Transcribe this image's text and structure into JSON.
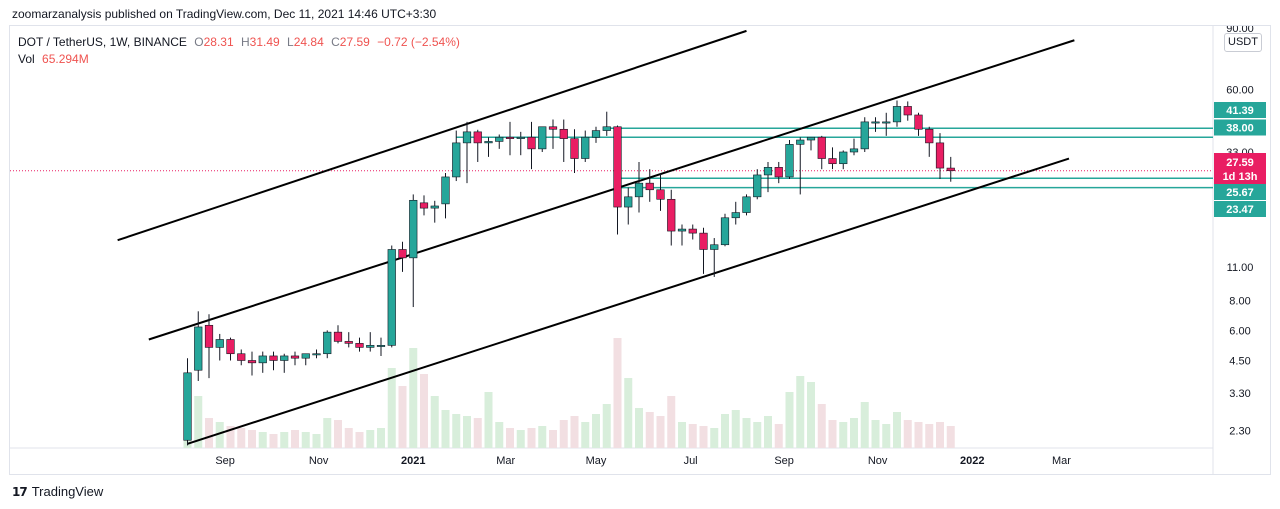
{
  "header": {
    "publisher": "zoomarzanalysis published on TradingView.com, Dec 11, 2021 14:46 UTC+3:30"
  },
  "legend": {
    "symbol": "DOT / TetherUS, 1W, BINANCE",
    "o_label": "O",
    "o_val": "28.31",
    "h_label": "H",
    "h_val": "31.49",
    "l_label": "L",
    "l_val": "24.84",
    "c_label": "C",
    "c_val": "27.59",
    "change": "−0.72 (−2.54%)",
    "vol_label": "Vol",
    "vol_val": "65.294M"
  },
  "currency_label": "USDT",
  "footer": {
    "brand": "TradingView",
    "logo": "17"
  },
  "colors": {
    "up": "#26a69a",
    "down": "#e91e63",
    "vol_up": "#d8eedb",
    "vol_down": "#f2dfe2",
    "level": "#26a69a",
    "price": "#e91e63"
  },
  "chart_data": {
    "type": "candlestick",
    "symbol": "DOT / TetherUS",
    "interval": "1W",
    "exchange": "BINANCE",
    "y_scale": "log",
    "ylim": [
      1.95,
      110
    ],
    "x_ticks": [
      "Sep",
      "Nov",
      "2021",
      "Mar",
      "May",
      "Jul",
      "Sep",
      "Nov",
      "2022",
      "Mar"
    ],
    "x_tick_index": [
      3.5,
      12.2,
      21.0,
      29.6,
      38.0,
      46.8,
      55.5,
      64.2,
      73.0,
      81.3
    ],
    "y_ticks": [
      2.3,
      3.3,
      4.5,
      6.0,
      8.0,
      11.0,
      33.0,
      60.0
    ],
    "y_tick_labels": [
      "2.30",
      "3.30",
      "4.50",
      "6.00",
      "8.00",
      "11.00",
      "33.00",
      "60.00"
    ],
    "candles": [
      {
        "o": 2.1,
        "h": 4.6,
        "l": 2.0,
        "c": 4.0,
        "v": 34
      },
      {
        "o": 4.1,
        "h": 7.2,
        "l": 3.7,
        "c": 6.2,
        "v": 52
      },
      {
        "o": 6.3,
        "h": 7.0,
        "l": 3.8,
        "c": 5.1,
        "v": 30
      },
      {
        "o": 5.1,
        "h": 5.8,
        "l": 4.5,
        "c": 5.5,
        "v": 26
      },
      {
        "o": 5.5,
        "h": 5.6,
        "l": 4.5,
        "c": 4.8,
        "v": 22
      },
      {
        "o": 4.8,
        "h": 5.0,
        "l": 4.3,
        "c": 4.5,
        "v": 20
      },
      {
        "o": 4.5,
        "h": 4.9,
        "l": 3.9,
        "c": 4.4,
        "v": 18
      },
      {
        "o": 4.4,
        "h": 4.9,
        "l": 4.0,
        "c": 4.7,
        "v": 16
      },
      {
        "o": 4.7,
        "h": 4.9,
        "l": 4.1,
        "c": 4.5,
        "v": 14
      },
      {
        "o": 4.5,
        "h": 4.8,
        "l": 4.0,
        "c": 4.7,
        "v": 16
      },
      {
        "o": 4.7,
        "h": 4.9,
        "l": 4.3,
        "c": 4.6,
        "v": 18
      },
      {
        "o": 4.6,
        "h": 4.8,
        "l": 4.3,
        "c": 4.8,
        "v": 16
      },
      {
        "o": 4.8,
        "h": 5.0,
        "l": 4.6,
        "c": 4.8,
        "v": 14
      },
      {
        "o": 4.8,
        "h": 6.0,
        "l": 4.6,
        "c": 5.9,
        "v": 30
      },
      {
        "o": 5.9,
        "h": 6.3,
        "l": 5.3,
        "c": 5.4,
        "v": 28
      },
      {
        "o": 5.4,
        "h": 5.9,
        "l": 5.1,
        "c": 5.3,
        "v": 20
      },
      {
        "o": 5.3,
        "h": 5.6,
        "l": 4.9,
        "c": 5.1,
        "v": 16
      },
      {
        "o": 5.1,
        "h": 5.9,
        "l": 4.9,
        "c": 5.2,
        "v": 18
      },
      {
        "o": 5.2,
        "h": 5.6,
        "l": 4.7,
        "c": 5.2,
        "v": 20
      },
      {
        "o": 5.2,
        "h": 13.5,
        "l": 5.1,
        "c": 13.0,
        "v": 80
      },
      {
        "o": 13.0,
        "h": 14.0,
        "l": 10.5,
        "c": 12.0,
        "v": 62
      },
      {
        "o": 12.0,
        "h": 22.0,
        "l": 7.5,
        "c": 20.8,
        "v": 100
      },
      {
        "o": 20.3,
        "h": 21.8,
        "l": 18.0,
        "c": 19.3,
        "v": 74
      },
      {
        "o": 19.3,
        "h": 20.7,
        "l": 16.8,
        "c": 19.7,
        "v": 52
      },
      {
        "o": 20.1,
        "h": 27.0,
        "l": 17.5,
        "c": 26.0,
        "v": 38
      },
      {
        "o": 26.0,
        "h": 40.5,
        "l": 25.0,
        "c": 36.0,
        "v": 34
      },
      {
        "o": 36.0,
        "h": 44.0,
        "l": 24.5,
        "c": 40.0,
        "v": 32
      },
      {
        "o": 40.0,
        "h": 40.8,
        "l": 30.0,
        "c": 36.0,
        "v": 30
      },
      {
        "o": 36.0,
        "h": 38.0,
        "l": 31.5,
        "c": 36.5,
        "v": 56
      },
      {
        "o": 36.5,
        "h": 39.0,
        "l": 34.0,
        "c": 38.0,
        "v": 26
      },
      {
        "o": 38.0,
        "h": 44.0,
        "l": 32.0,
        "c": 37.5,
        "v": 20
      },
      {
        "o": 37.5,
        "h": 40.0,
        "l": 32.0,
        "c": 38.0,
        "v": 18
      },
      {
        "o": 38.0,
        "h": 44.0,
        "l": 28.0,
        "c": 34.0,
        "v": 20
      },
      {
        "o": 34.0,
        "h": 42.0,
        "l": 33.0,
        "c": 42.0,
        "v": 22
      },
      {
        "o": 42.0,
        "h": 45.0,
        "l": 34.0,
        "c": 41.0,
        "v": 18
      },
      {
        "o": 41.0,
        "h": 45.0,
        "l": 30.0,
        "c": 37.5,
        "v": 28
      },
      {
        "o": 37.5,
        "h": 41.0,
        "l": 27.0,
        "c": 31.0,
        "v": 32
      },
      {
        "o": 31.0,
        "h": 40.5,
        "l": 30.0,
        "c": 38.0,
        "v": 26
      },
      {
        "o": 38.0,
        "h": 42.0,
        "l": 36.0,
        "c": 40.5,
        "v": 34
      },
      {
        "o": 40.5,
        "h": 48.5,
        "l": 38.5,
        "c": 42.0,
        "v": 44
      },
      {
        "o": 42.0,
        "h": 42.5,
        "l": 15.0,
        "c": 19.5,
        "v": 110
      },
      {
        "o": 19.5,
        "h": 23.5,
        "l": 16.5,
        "c": 21.5,
        "v": 70
      },
      {
        "o": 21.5,
        "h": 30.0,
        "l": 18.5,
        "c": 24.5,
        "v": 40
      },
      {
        "o": 24.5,
        "h": 28.0,
        "l": 20.5,
        "c": 23.0,
        "v": 36
      },
      {
        "o": 23.0,
        "h": 27.0,
        "l": 18.8,
        "c": 21.0,
        "v": 32
      },
      {
        "o": 21.0,
        "h": 23.0,
        "l": 13.5,
        "c": 15.5,
        "v": 52
      },
      {
        "o": 15.5,
        "h": 16.5,
        "l": 13.5,
        "c": 15.8,
        "v": 26
      },
      {
        "o": 15.8,
        "h": 16.5,
        "l": 14.3,
        "c": 15.2,
        "v": 24
      },
      {
        "o": 15.2,
        "h": 16.0,
        "l": 10.3,
        "c": 13.0,
        "v": 22
      },
      {
        "o": 13.0,
        "h": 14.5,
        "l": 10.0,
        "c": 13.6,
        "v": 20
      },
      {
        "o": 13.6,
        "h": 18.3,
        "l": 13.4,
        "c": 17.6,
        "v": 34
      },
      {
        "o": 17.6,
        "h": 20.5,
        "l": 16.5,
        "c": 18.5,
        "v": 38
      },
      {
        "o": 18.5,
        "h": 22.0,
        "l": 18.0,
        "c": 21.5,
        "v": 30
      },
      {
        "o": 21.5,
        "h": 28.0,
        "l": 21.0,
        "c": 26.5,
        "v": 26
      },
      {
        "o": 26.5,
        "h": 30.0,
        "l": 22.5,
        "c": 28.5,
        "v": 32
      },
      {
        "o": 28.5,
        "h": 30.0,
        "l": 24.5,
        "c": 26.0,
        "v": 24
      },
      {
        "o": 26.0,
        "h": 37.0,
        "l": 25.5,
        "c": 35.5,
        "v": 56
      },
      {
        "o": 35.5,
        "h": 38.0,
        "l": 22.0,
        "c": 37.0,
        "v": 72
      },
      {
        "o": 37.0,
        "h": 38.0,
        "l": 33.5,
        "c": 38.0,
        "v": 66
      },
      {
        "o": 38.0,
        "h": 38.5,
        "l": 28.0,
        "c": 31.0,
        "v": 44
      },
      {
        "o": 31.0,
        "h": 34.5,
        "l": 28.0,
        "c": 29.5,
        "v": 28
      },
      {
        "o": 29.5,
        "h": 33.5,
        "l": 28.0,
        "c": 33.0,
        "v": 26
      },
      {
        "o": 33.0,
        "h": 37.5,
        "l": 32.0,
        "c": 34.0,
        "v": 30
      },
      {
        "o": 34.0,
        "h": 46.0,
        "l": 33.0,
        "c": 44.0,
        "v": 46
      },
      {
        "o": 44.0,
        "h": 46.0,
        "l": 40.0,
        "c": 44.0,
        "v": 28
      },
      {
        "o": 44.0,
        "h": 48.0,
        "l": 38.5,
        "c": 44.0,
        "v": 24
      },
      {
        "o": 44.0,
        "h": 54.0,
        "l": 42.0,
        "c": 51.0,
        "v": 36
      },
      {
        "o": 51.0,
        "h": 53.5,
        "l": 44.5,
        "c": 47.0,
        "v": 28
      },
      {
        "o": 47.0,
        "h": 48.0,
        "l": 38.5,
        "c": 41.0,
        "v": 26
      },
      {
        "o": 41.0,
        "h": 42.0,
        "l": 31.5,
        "c": 36.0,
        "v": 24
      },
      {
        "o": 36.0,
        "h": 39.5,
        "l": 25.5,
        "c": 28.3,
        "v": 26
      },
      {
        "o": 28.3,
        "h": 31.49,
        "l": 24.84,
        "c": 27.59,
        "v": 22
      }
    ],
    "channel_lines": [
      {
        "start_index": -6.5,
        "start": 14.2,
        "end_index": 52.0,
        "end": 105.0
      },
      {
        "start_index": -3.6,
        "start": 5.5,
        "end_index": 82.5,
        "end": 96.0
      },
      {
        "start_index": 0.0,
        "start": 2.03,
        "end_index": 82.0,
        "end": 31.0
      }
    ],
    "levels": [
      {
        "label": "41.39",
        "value": 41.39,
        "from_index": 39.0
      },
      {
        "label": "38.00",
        "value": 38.0,
        "from_index": 25.0
      },
      {
        "label": "25.67",
        "value": 25.67,
        "from_index": 40.0
      },
      {
        "label": "23.47",
        "value": 23.47,
        "from_index": 40.0
      }
    ],
    "last_price": {
      "label": "27.59",
      "value": 27.59,
      "countdown": "1d 13h"
    },
    "top_partial_label": "90.00"
  }
}
